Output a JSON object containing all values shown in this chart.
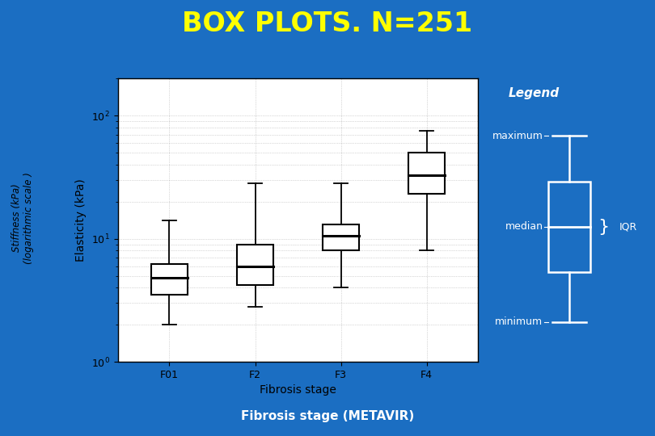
{
  "title": "BOX PLOTS. N=251",
  "title_color": "#FFFF00",
  "bg_color": "#1B6EC2",
  "plot_bg": "#FFFFFF",
  "subtitle": "Fibrosis stage (METAVIR)",
  "subtitle_color": "#FFFFFF",
  "categories": [
    "F01",
    "F2",
    "F3",
    "F4"
  ],
  "xlabel": "Fibrosis stage",
  "ylabel": "Elasticity (kPa)",
  "ylabel2": "Stiffness (kPa)\n(logarithmic scale )",
  "ylim_log": [
    1,
    200
  ],
  "box_data": {
    "F01": {
      "min": 2.0,
      "q1": 3.5,
      "median": 4.8,
      "q3": 6.2,
      "max": 14.0
    },
    "F2": {
      "min": 2.8,
      "q1": 4.2,
      "median": 6.0,
      "q3": 9.0,
      "max": 28.0
    },
    "F3": {
      "min": 4.0,
      "q1": 8.0,
      "median": 10.5,
      "q3": 13.0,
      "max": 28.0
    },
    "F4": {
      "min": 8.0,
      "q1": 23.0,
      "median": 33.0,
      "q3": 50.0,
      "max": 75.0
    }
  },
  "box_color": "#000000",
  "box_fill": "#FFFFFF",
  "whisker_color": "#000000",
  "median_color": "#000000",
  "legend_title": "Legend",
  "legend_title_color": "#FFFFFF",
  "legend_label_color": "#FFFFFF",
  "legend_box_color": "#FFFFFF",
  "tick_label_fontsize": 9,
  "axis_label_fontsize": 10,
  "title_fontsize": 24,
  "yellow_line_color": "#CCCC00"
}
